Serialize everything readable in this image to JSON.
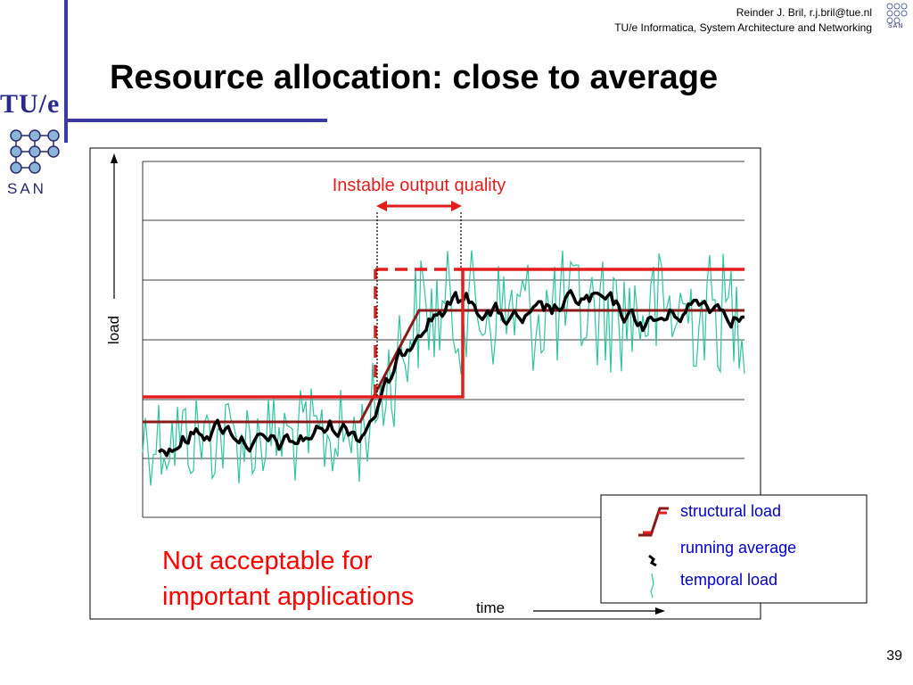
{
  "header": {
    "author_line": "Reinder J. Bril, r.j.bril@tue.nl",
    "affiliation_line": "TU/e Informatica, System Architecture and Networking"
  },
  "logo": {
    "tue_text": "TU/e",
    "san_text": "SAN"
  },
  "slide": {
    "title": "Resource allocation: close to average",
    "page_number": "39"
  },
  "diagram": {
    "y_axis_label": "load",
    "x_axis_label": "time",
    "annotation": "Instable output quality",
    "warning_line1": "Not acceptable for",
    "warning_line2": "important applications",
    "legend": {
      "structural": "structural load",
      "running": "running average",
      "temporal": "temporal load"
    },
    "colors": {
      "temporal": "#2ec4a0",
      "running": "#000000",
      "structural": "#8b1a1a",
      "allocation": "#e31c1c",
      "warning": "#ff0000",
      "legend_text": "#0000cc",
      "frame_accent": "#3a3aa0"
    }
  }
}
